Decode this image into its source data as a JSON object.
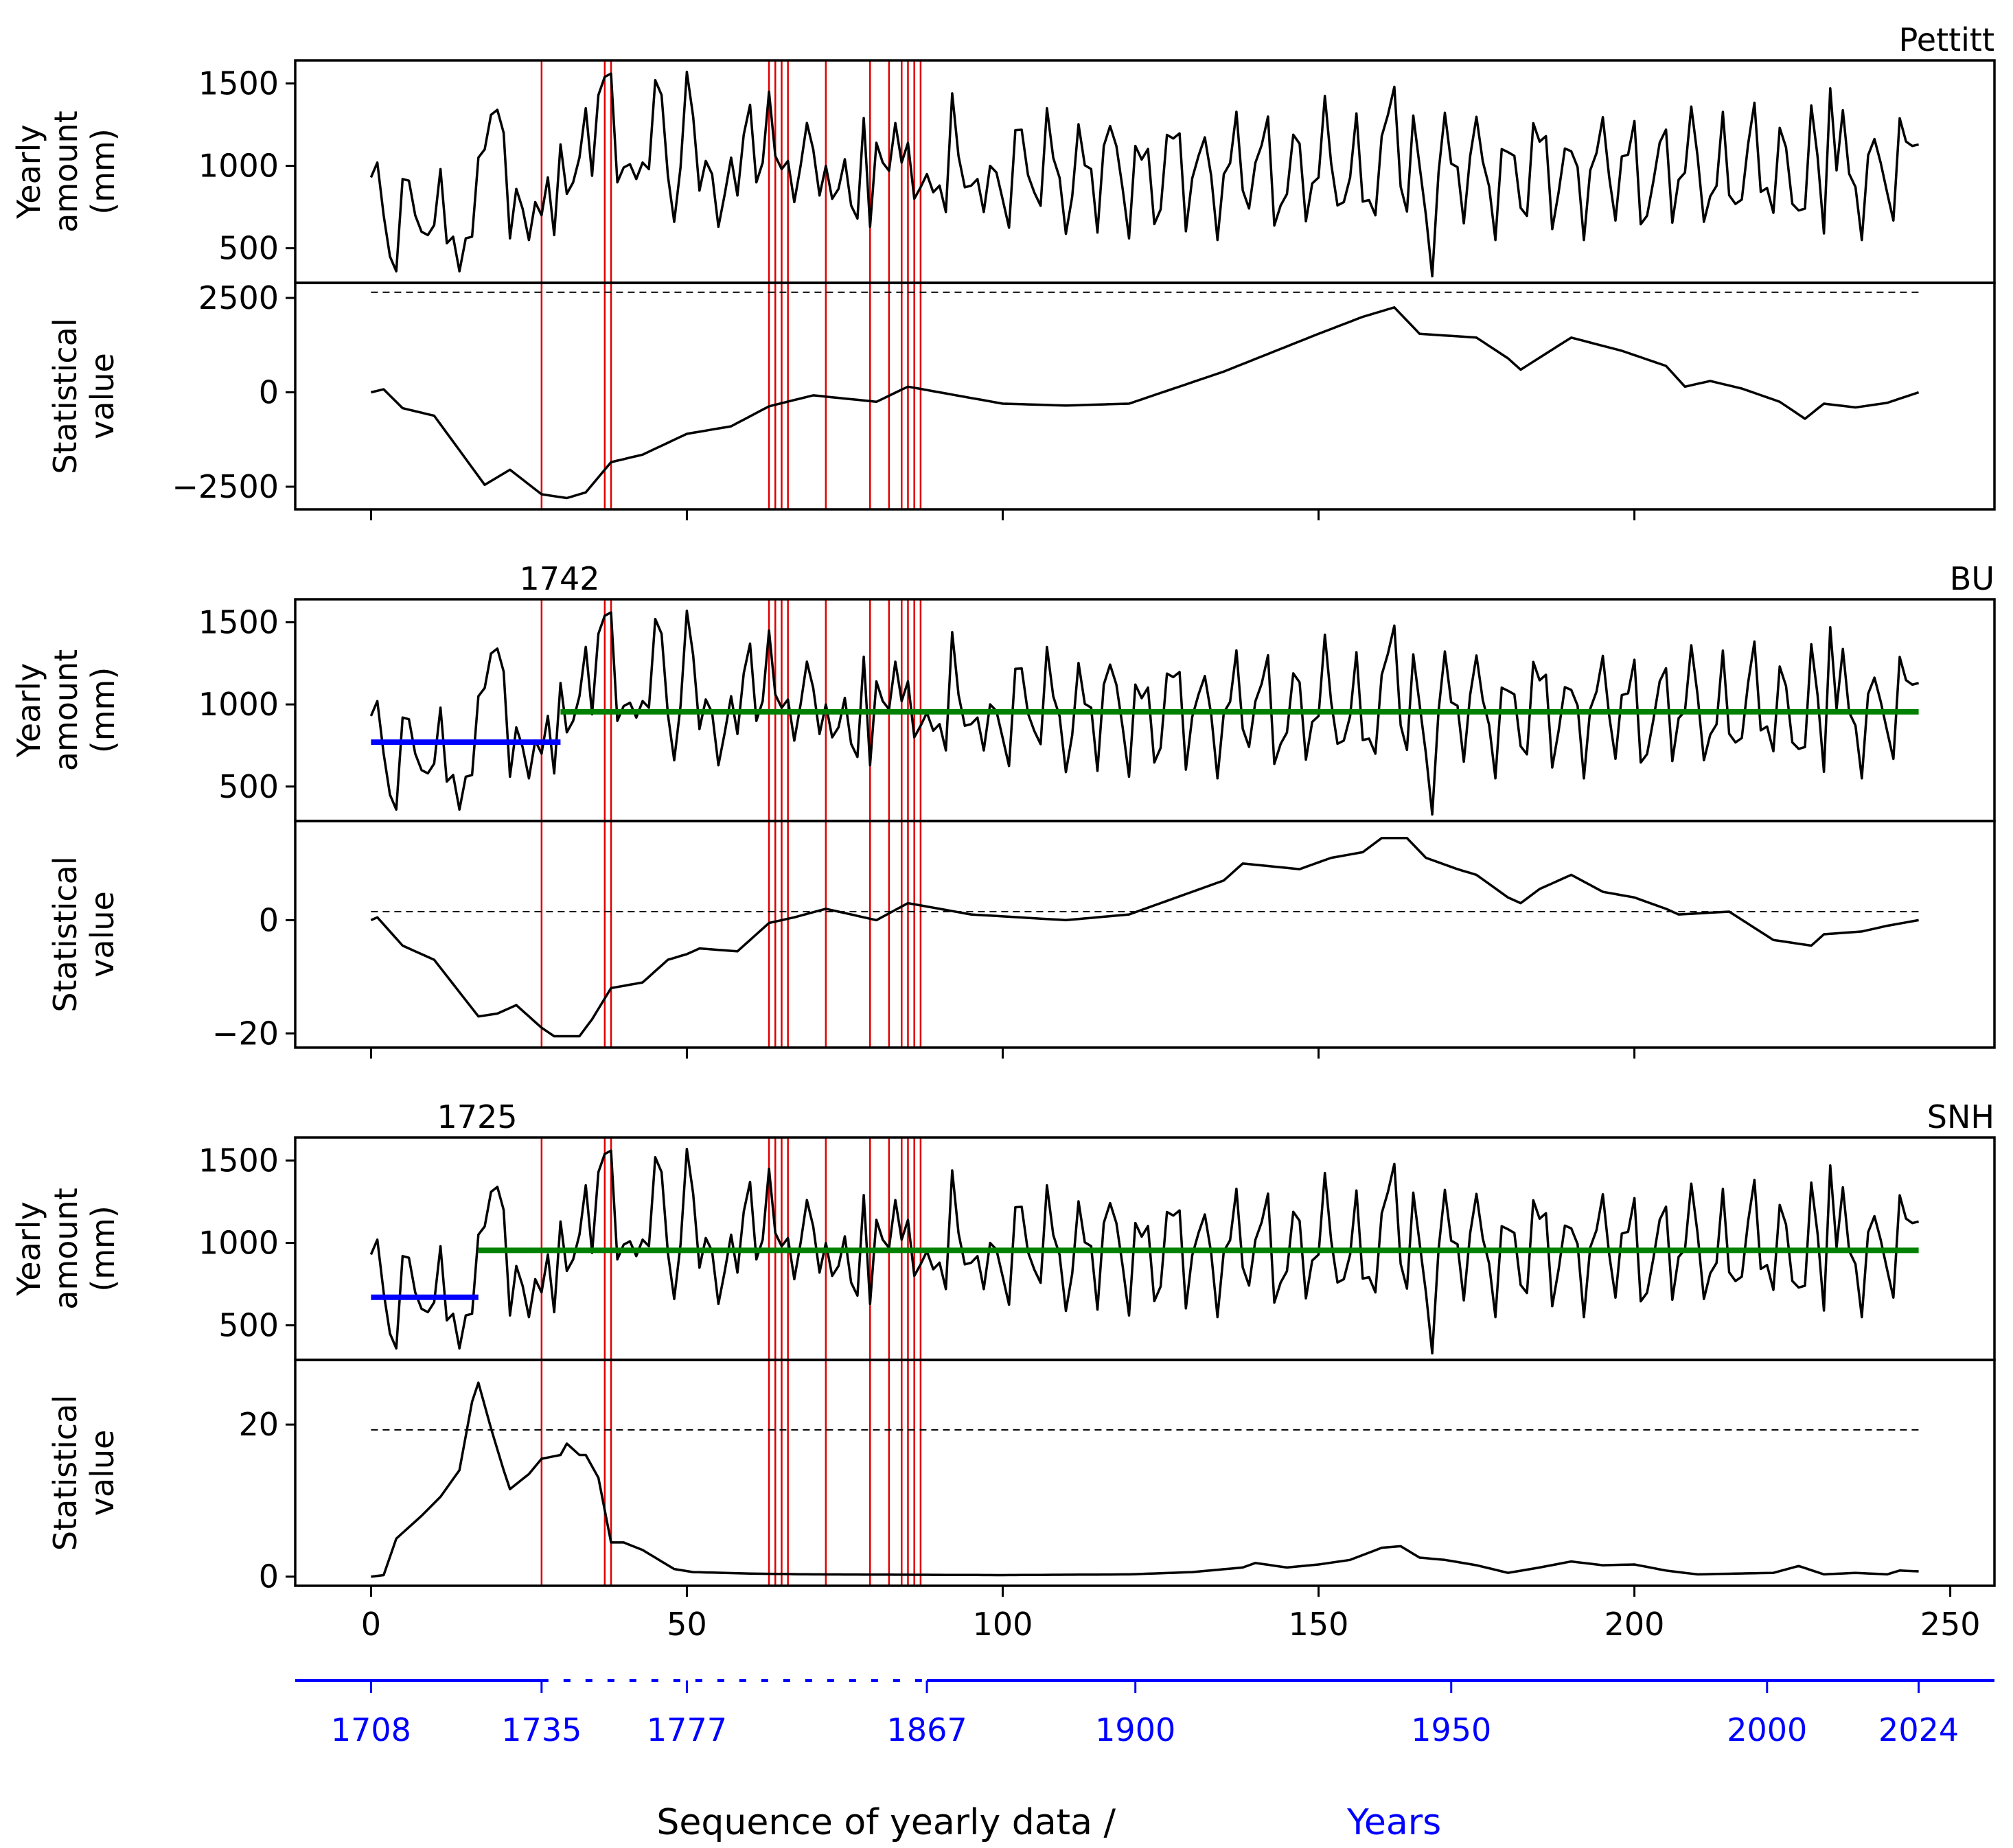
{
  "chart_data": {
    "type": "line",
    "x_axis": {
      "label": "Sequence of yearly data / ",
      "label_suffix": "Years",
      "ticks": [
        0,
        50,
        100,
        150,
        200,
        250
      ],
      "range": [
        -12,
        257
      ]
    },
    "secondary_axis": {
      "color": "#0000ff",
      "ticks": [
        {
          "seq": 0,
          "label": "1708"
        },
        {
          "seq": 27,
          "label": "1735"
        },
        {
          "seq": 50,
          "label": "1777"
        },
        {
          "seq": 88,
          "label": "1867"
        },
        {
          "seq": 121,
          "label": "1900"
        },
        {
          "seq": 171,
          "label": "1950"
        },
        {
          "seq": 221,
          "label": "2000"
        },
        {
          "seq": 245,
          "label": "2024"
        }
      ],
      "dashed_span": [
        27,
        88
      ]
    },
    "red_vertical_lines": [
      27,
      37,
      38,
      63,
      64,
      65,
      66,
      72,
      79,
      82,
      84,
      85,
      86,
      87
    ],
    "precip_knots": [
      [
        0,
        930
      ],
      [
        1,
        1020
      ],
      [
        2,
        700
      ],
      [
        3,
        450
      ],
      [
        4,
        360
      ],
      [
        5,
        920
      ],
      [
        6,
        910
      ],
      [
        7,
        700
      ],
      [
        8,
        600
      ],
      [
        9,
        580
      ],
      [
        10,
        640
      ],
      [
        11,
        980
      ],
      [
        12,
        530
      ],
      [
        13,
        570
      ],
      [
        14,
        360
      ],
      [
        15,
        560
      ],
      [
        16,
        570
      ],
      [
        17,
        1050
      ],
      [
        18,
        1100
      ],
      [
        19,
        1310
      ],
      [
        20,
        1340
      ],
      [
        21,
        1200
      ],
      [
        22,
        560
      ],
      [
        23,
        860
      ],
      [
        24,
        740
      ],
      [
        25,
        550
      ],
      [
        26,
        780
      ],
      [
        27,
        700
      ],
      [
        28,
        930
      ],
      [
        29,
        580
      ],
      [
        30,
        1130
      ],
      [
        31,
        830
      ],
      [
        32,
        900
      ],
      [
        33,
        1050
      ],
      [
        34,
        1350
      ],
      [
        35,
        940
      ],
      [
        36,
        1430
      ],
      [
        37,
        1540
      ],
      [
        38,
        1560
      ],
      [
        39,
        900
      ],
      [
        40,
        990
      ],
      [
        41,
        1010
      ],
      [
        42,
        920
      ],
      [
        43,
        1020
      ],
      [
        44,
        980
      ],
      [
        45,
        1520
      ],
      [
        46,
        1430
      ],
      [
        47,
        940
      ],
      [
        48,
        660
      ],
      [
        49,
        990
      ],
      [
        50,
        1570
      ],
      [
        51,
        1300
      ],
      [
        52,
        850
      ],
      [
        53,
        1030
      ],
      [
        54,
        950
      ],
      [
        55,
        630
      ],
      [
        56,
        830
      ],
      [
        57,
        1050
      ],
      [
        58,
        820
      ],
      [
        59,
        1190
      ],
      [
        60,
        1370
      ],
      [
        61,
        900
      ],
      [
        62,
        1020
      ],
      [
        63,
        1450
      ],
      [
        64,
        1060
      ],
      [
        65,
        980
      ],
      [
        66,
        1030
      ],
      [
        67,
        780
      ],
      [
        68,
        1000
      ],
      [
        69,
        1260
      ],
      [
        70,
        1100
      ],
      [
        71,
        820
      ],
      [
        72,
        1000
      ],
      [
        73,
        800
      ],
      [
        74,
        860
      ],
      [
        75,
        1040
      ],
      [
        76,
        760
      ],
      [
        77,
        680
      ],
      [
        78,
        1290
      ],
      [
        79,
        630
      ],
      [
        80,
        1140
      ],
      [
        81,
        1020
      ],
      [
        82,
        970
      ],
      [
        83,
        1260
      ],
      [
        84,
        1020
      ],
      [
        85,
        1140
      ],
      [
        86,
        800
      ],
      [
        87,
        870
      ],
      [
        88,
        950
      ],
      [
        89,
        840
      ],
      [
        90,
        880
      ],
      [
        91,
        720
      ],
      [
        92,
        1440
      ],
      [
        93,
        1060
      ],
      [
        94,
        870
      ],
      [
        95,
        880
      ],
      [
        96,
        920
      ],
      [
        97,
        720
      ],
      [
        98,
        1000
      ],
      [
        99,
        960
      ]
    ],
    "precip_general": {
      "n": 246,
      "base": 960,
      "terms": [
        {
          "freq": 1.3,
          "phase": 0.0,
          "amp": 280
        },
        {
          "freq": 2.7,
          "phase": 1.7,
          "amp": 150
        },
        {
          "freq": 0.55,
          "phase": 0.4,
          "amp": 60
        }
      ],
      "special": [
        {
          "seq": 162,
          "value": 1480
        },
        {
          "seq": 166,
          "value": 1000
        },
        {
          "seq": 167,
          "value": 700
        },
        {
          "seq": 168,
          "value": 330
        },
        {
          "seq": 169,
          "value": 960
        },
        {
          "seq": 230,
          "value": 590
        },
        {
          "seq": 231,
          "value": 1470
        },
        {
          "seq": 245,
          "value": 1130
        }
      ]
    },
    "panels": [
      {
        "name": "Pettitt",
        "title": "Pettitt",
        "change_year_label": "",
        "precip_axis": {
          "label_lines": [
            "Yearly",
            "amount",
            "(mm)"
          ],
          "ylim": [
            290,
            1640
          ],
          "ticks": [
            500,
            1000,
            1500
          ]
        },
        "stat_axis": {
          "label_lines": [
            "Statistical",
            "value"
          ],
          "ylim": [
            -3100,
            2900
          ],
          "ticks": [
            -2500,
            0,
            2500
          ],
          "tick_labels": [
            "−2500",
            "0",
            "2500"
          ],
          "threshold": 2650
        },
        "segments": [],
        "stat_knots": [
          [
            0,
            0
          ],
          [
            2,
            80
          ],
          [
            5,
            -420
          ],
          [
            10,
            -620
          ],
          [
            18,
            -2450
          ],
          [
            22,
            -2050
          ],
          [
            27,
            -2700
          ],
          [
            31,
            -2800
          ],
          [
            34,
            -2650
          ],
          [
            38,
            -1850
          ],
          [
            43,
            -1650
          ],
          [
            50,
            -1100
          ],
          [
            57,
            -900
          ],
          [
            63,
            -370
          ],
          [
            70,
            -80
          ],
          [
            80,
            -250
          ],
          [
            85,
            150
          ],
          [
            100,
            -300
          ],
          [
            110,
            -350
          ],
          [
            120,
            -300
          ],
          [
            135,
            550
          ],
          [
            150,
            1550
          ],
          [
            157,
            2000
          ],
          [
            162,
            2250
          ],
          [
            166,
            1550
          ],
          [
            175,
            1450
          ],
          [
            180,
            900
          ],
          [
            182,
            600
          ],
          [
            190,
            1450
          ],
          [
            198,
            1100
          ],
          [
            205,
            700
          ],
          [
            208,
            150
          ],
          [
            212,
            300
          ],
          [
            217,
            100
          ],
          [
            223,
            -250
          ],
          [
            227,
            -700
          ],
          [
            230,
            -300
          ],
          [
            235,
            -400
          ],
          [
            240,
            -280
          ],
          [
            245,
            0
          ]
        ]
      },
      {
        "name": "BU",
        "title": "BU",
        "change_year_label": "1742",
        "precip_axis": {
          "label_lines": [
            "Yearly",
            "amount",
            "(mm)"
          ],
          "ylim": [
            290,
            1640
          ],
          "ticks": [
            500,
            1000,
            1500
          ]
        },
        "stat_axis": {
          "label_lines": [
            "Statistical",
            "value"
          ],
          "ylim": [
            -22.5,
            17.5
          ],
          "ticks": [
            -20,
            0
          ],
          "tick_labels": [
            "−20",
            "0"
          ],
          "threshold": 1.5
        },
        "segments": [
          {
            "x0": 0,
            "x1": 30,
            "value": 770,
            "color": "#0000ff"
          },
          {
            "x0": 30,
            "x1": 245,
            "value": 955,
            "color": "#008000"
          }
        ],
        "stat_knots": [
          [
            0,
            0
          ],
          [
            1,
            0.5
          ],
          [
            3,
            -2
          ],
          [
            5,
            -4.5
          ],
          [
            10,
            -7
          ],
          [
            17,
            -17
          ],
          [
            20,
            -16.5
          ],
          [
            23,
            -15
          ],
          [
            27,
            -19
          ],
          [
            29,
            -20.5
          ],
          [
            33,
            -20.5
          ],
          [
            35,
            -17.5
          ],
          [
            38,
            -12
          ],
          [
            43,
            -11
          ],
          [
            47,
            -7
          ],
          [
            50,
            -6
          ],
          [
            52,
            -5
          ],
          [
            58,
            -5.5
          ],
          [
            63,
            -0.5
          ],
          [
            67,
            0.5
          ],
          [
            72,
            2
          ],
          [
            80,
            0
          ],
          [
            85,
            3
          ],
          [
            95,
            1
          ],
          [
            110,
            0
          ],
          [
            120,
            1
          ],
          [
            125,
            3
          ],
          [
            135,
            7
          ],
          [
            138,
            10
          ],
          [
            147,
            9
          ],
          [
            152,
            11
          ],
          [
            157,
            12
          ],
          [
            160,
            14.5
          ],
          [
            164,
            14.5
          ],
          [
            167,
            11
          ],
          [
            172,
            9
          ],
          [
            175,
            8
          ],
          [
            180,
            4
          ],
          [
            182,
            3
          ],
          [
            185,
            5.5
          ],
          [
            190,
            8
          ],
          [
            195,
            5
          ],
          [
            200,
            4
          ],
          [
            205,
            2
          ],
          [
            207,
            1
          ],
          [
            215,
            1.5
          ],
          [
            222,
            -3.5
          ],
          [
            228,
            -4.5
          ],
          [
            230,
            -2.5
          ],
          [
            236,
            -2
          ],
          [
            240,
            -1
          ],
          [
            245,
            0
          ]
        ]
      },
      {
        "name": "SNH",
        "title": "SNH",
        "change_year_label": "1725",
        "precip_axis": {
          "label_lines": [
            "Yearly",
            "amount",
            "(mm)"
          ],
          "ylim": [
            290,
            1640
          ],
          "ticks": [
            500,
            1000,
            1500
          ]
        },
        "stat_axis": {
          "label_lines": [
            "Statistical",
            "value"
          ],
          "ylim": [
            -1.2,
            28.5
          ],
          "ticks": [
            0,
            20
          ],
          "tick_labels": [
            "0",
            "20"
          ],
          "threshold": 19.3
        },
        "segments": [
          {
            "x0": 0,
            "x1": 17,
            "value": 670,
            "color": "#0000ff"
          },
          {
            "x0": 17,
            "x1": 245,
            "value": 955,
            "color": "#008000"
          }
        ],
        "stat_knots": [
          [
            0,
            0
          ],
          [
            2,
            0.2
          ],
          [
            4,
            5
          ],
          [
            8,
            8
          ],
          [
            11,
            10.5
          ],
          [
            14,
            14
          ],
          [
            16,
            23
          ],
          [
            17,
            25.5
          ],
          [
            19,
            19.5
          ],
          [
            21,
            14
          ],
          [
            22,
            11.5
          ],
          [
            25,
            13.5
          ],
          [
            27,
            15.5
          ],
          [
            30,
            16
          ],
          [
            31,
            17.5
          ],
          [
            33,
            16
          ],
          [
            34,
            16
          ],
          [
            36,
            13
          ],
          [
            38,
            4.5
          ],
          [
            40,
            4.5
          ],
          [
            43,
            3.5
          ],
          [
            45,
            2.5
          ],
          [
            48,
            1
          ],
          [
            51,
            0.6
          ],
          [
            60,
            0.4
          ],
          [
            70,
            0.3
          ],
          [
            100,
            0.2
          ],
          [
            120,
            0.3
          ],
          [
            130,
            0.6
          ],
          [
            138,
            1.2
          ],
          [
            140,
            1.8
          ],
          [
            145,
            1.2
          ],
          [
            150,
            1.6
          ],
          [
            155,
            2.2
          ],
          [
            160,
            3.8
          ],
          [
            163,
            4
          ],
          [
            166,
            2.5
          ],
          [
            170,
            2.2
          ],
          [
            175,
            1.5
          ],
          [
            180,
            0.5
          ],
          [
            185,
            1.2
          ],
          [
            190,
            2
          ],
          [
            195,
            1.5
          ],
          [
            200,
            1.6
          ],
          [
            205,
            0.8
          ],
          [
            210,
            0.3
          ],
          [
            222,
            0.5
          ],
          [
            226,
            1.4
          ],
          [
            230,
            0.3
          ],
          [
            235,
            0.5
          ],
          [
            240,
            0.3
          ],
          [
            242,
            0.8
          ],
          [
            245,
            0.7
          ]
        ]
      }
    ]
  }
}
